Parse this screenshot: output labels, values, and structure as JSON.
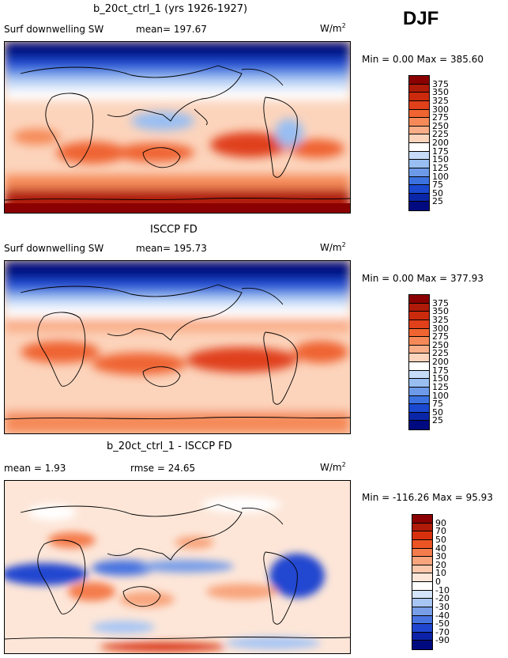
{
  "season": "DJF",
  "panels": [
    {
      "title": "b_20ct_ctrl_1 (yrs 1926-1927)",
      "left_label": "Surf downwelling SW",
      "mid_label": "mean=  197.67",
      "units_base": "W/m",
      "units_sup": "2",
      "minmax": "Min =    0.00 Max = 385.60",
      "colorbar": {
        "labels": [
          "375",
          "350",
          "325",
          "300",
          "275",
          "250",
          "225",
          "200",
          "175",
          "150",
          "125",
          "100",
          "75",
          "50",
          "25"
        ],
        "colors": [
          "#8b0000",
          "#b01a08",
          "#cc2a0c",
          "#e0401a",
          "#ef6430",
          "#f58a58",
          "#f9ae88",
          "#fcd4bc",
          "#ffffff",
          "#c6dcf8",
          "#98bef2",
          "#6c9ae8",
          "#3c72e0",
          "#1a48d0",
          "#0a26a8",
          "#000a80"
        ]
      }
    },
    {
      "title": "ISCCP FD",
      "left_label": "Surf downwelling SW",
      "mid_label": "mean=  195.73",
      "units_base": "W/m",
      "units_sup": "2",
      "minmax": "Min =    0.00 Max = 377.93",
      "colorbar": {
        "labels": [
          "375",
          "350",
          "325",
          "300",
          "275",
          "250",
          "225",
          "200",
          "175",
          "150",
          "125",
          "100",
          "75",
          "50",
          "25"
        ],
        "colors": [
          "#8b0000",
          "#b01a08",
          "#cc2a0c",
          "#e0401a",
          "#ef6430",
          "#f58a58",
          "#f9ae88",
          "#fcd4bc",
          "#ffffff",
          "#c6dcf8",
          "#98bef2",
          "#6c9ae8",
          "#3c72e0",
          "#1a48d0",
          "#0a26a8",
          "#000a80"
        ]
      }
    },
    {
      "title": "b_20ct_ctrl_1 - ISCCP FD",
      "left_label": "mean =    1.93",
      "mid_label": "rmse =   24.65",
      "units_base": "W/m",
      "units_sup": "2",
      "minmax": "Min = -116.26 Max =  95.93",
      "colorbar": {
        "labels": [
          "90",
          "70",
          "50",
          "40",
          "30",
          "20",
          "10",
          "0",
          "-10",
          "-20",
          "-30",
          "-40",
          "-50",
          "-70",
          "-90"
        ],
        "colors": [
          "#8b0000",
          "#b01a08",
          "#d8300c",
          "#ec5424",
          "#f47c4c",
          "#f8a47c",
          "#fbc8ac",
          "#fde6d8",
          "#ffffff",
          "#d4e4fa",
          "#a8c6f4",
          "#789ee8",
          "#4874e0",
          "#2046d0",
          "#0c22a8",
          "#000a80"
        ]
      }
    }
  ]
}
